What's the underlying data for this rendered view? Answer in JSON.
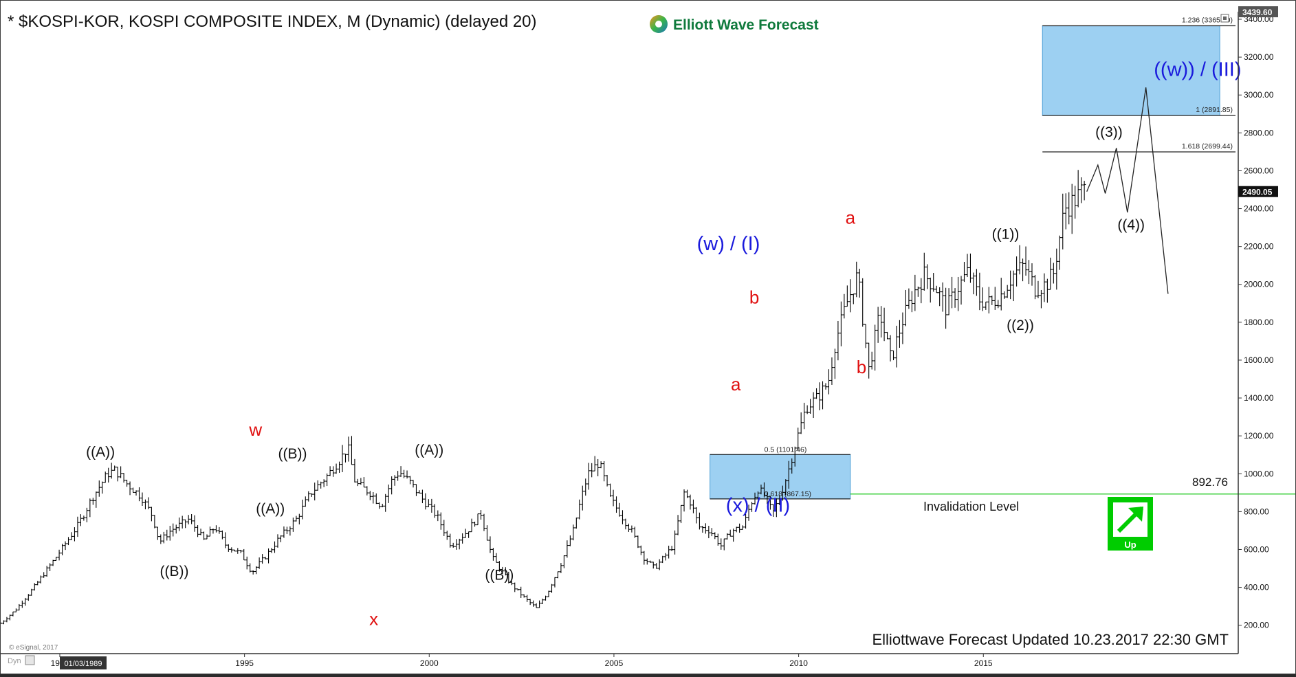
{
  "header": {
    "title": "* $KOSPI-KOR, KOSPI COMPOSITE INDEX, M (Dynamic) (delayed 20)",
    "brand": "Elliott Wave Forecast"
  },
  "footer": {
    "updated": "Elliottwave Forecast Updated 10.23.2017 22:30 GMT",
    "esignal": "© eSignal, 2017",
    "dyn": "Dyn",
    "date_cursor": "01/03/1989",
    "invalidation_label": "Invalidation Level",
    "invalidation_value": "892.76",
    "up_label": "Up"
  },
  "colors": {
    "price": "#000000",
    "blue_label": "#1a1adc",
    "red_label": "#e01010",
    "zone_fill": "#8cc8f0",
    "invalidation_line": "#00c000",
    "up_badge": "#00cc00"
  },
  "chart_data": {
    "type": "line",
    "x_unit": "year",
    "y_unit": "index points",
    "xlim": [
      1988.4,
      2021.9
    ],
    "ylim": [
      50,
      3440
    ],
    "y_ticks": [
      200,
      400,
      600,
      800,
      1000,
      1200,
      1400,
      1600,
      1800,
      2000,
      2200,
      2400,
      2600,
      2800,
      3000,
      3200,
      3400
    ],
    "x_ticks": [
      {
        "x": 1990,
        "label": "1990"
      },
      {
        "x": 1995,
        "label": "1995"
      },
      {
        "x": 2000,
        "label": "2000"
      },
      {
        "x": 2005,
        "label": "2005"
      },
      {
        "x": 2010,
        "label": "2010"
      },
      {
        "x": 2015,
        "label": "2015"
      }
    ],
    "price_tags": [
      {
        "value": 3439.6,
        "label": "3439.60"
      },
      {
        "value": 2490.05,
        "label": "2490.05"
      }
    ],
    "series": [
      {
        "style": "monthly-bars",
        "points": [
          [
            1988.4,
            210
          ],
          [
            1988.8,
            280
          ],
          [
            1989.3,
            400
          ],
          [
            1989.9,
            560
          ],
          [
            1990.5,
            730
          ],
          [
            1990.9,
            880
          ],
          [
            1991.3,
            1000
          ],
          [
            1991.5,
            1020
          ],
          [
            1991.8,
            950
          ],
          [
            1992.2,
            880
          ],
          [
            1992.5,
            780
          ],
          [
            1992.7,
            640
          ],
          [
            1993.0,
            700
          ],
          [
            1993.5,
            760
          ],
          [
            1993.9,
            650
          ],
          [
            1994.2,
            720
          ],
          [
            1994.5,
            620
          ],
          [
            1994.9,
            580
          ],
          [
            1995.2,
            480
          ],
          [
            1995.6,
            570
          ],
          [
            1995.9,
            650
          ],
          [
            1996.4,
            760
          ],
          [
            1996.8,
            900
          ],
          [
            1997.2,
            980
          ],
          [
            1997.6,
            1080
          ],
          [
            1997.8,
            1140
          ],
          [
            1998.0,
            950
          ],
          [
            1998.4,
            900
          ],
          [
            1998.7,
            830
          ],
          [
            1999.0,
            970
          ],
          [
            1999.2,
            1010
          ],
          [
            1999.5,
            950
          ],
          [
            1999.8,
            870
          ],
          [
            2000.2,
            780
          ],
          [
            2000.6,
            620
          ],
          [
            2001.0,
            690
          ],
          [
            2001.4,
            790
          ],
          [
            2001.7,
            560
          ],
          [
            2002.2,
            420
          ],
          [
            2002.6,
            340
          ],
          [
            2002.9,
            290
          ],
          [
            2003.2,
            370
          ],
          [
            2003.6,
            540
          ],
          [
            2003.9,
            700
          ],
          [
            2004.1,
            860
          ],
          [
            2004.3,
            1000
          ],
          [
            2004.6,
            1060
          ],
          [
            2004.9,
            870
          ],
          [
            2005.2,
            780
          ],
          [
            2005.5,
            690
          ],
          [
            2005.8,
            560
          ],
          [
            2006.1,
            500
          ],
          [
            2006.4,
            570
          ],
          [
            2006.6,
            620
          ],
          [
            2006.9,
            900
          ],
          [
            2007.1,
            840
          ],
          [
            2007.3,
            720
          ],
          [
            2007.6,
            700
          ],
          [
            2007.9,
            620
          ],
          [
            2008.2,
            700
          ],
          [
            2008.5,
            720
          ],
          [
            2008.7,
            840
          ],
          [
            2008.9,
            920
          ],
          [
            2009.1,
            880
          ],
          [
            2009.3,
            790
          ],
          [
            2009.5,
            880
          ],
          [
            2009.7,
            1000
          ],
          [
            2009.9,
            1150
          ],
          [
            2010.2,
            1350
          ],
          [
            2010.5,
            1400
          ],
          [
            2010.8,
            1480
          ],
          [
            2011.0,
            1700
          ],
          [
            2011.3,
            1900
          ],
          [
            2011.6,
            2050
          ],
          [
            2011.9,
            1550
          ],
          [
            2012.2,
            1850
          ],
          [
            2012.5,
            1600
          ],
          [
            2012.8,
            1800
          ],
          [
            2013.1,
            1950
          ],
          [
            2013.4,
            2050
          ],
          [
            2013.7,
            1990
          ],
          [
            2014.0,
            1870
          ],
          [
            2014.3,
            1980
          ],
          [
            2014.6,
            2070
          ],
          [
            2014.9,
            1920
          ],
          [
            2015.2,
            1900
          ],
          [
            2015.5,
            1950
          ],
          [
            2015.8,
            2050
          ],
          [
            2016.1,
            2100
          ],
          [
            2016.4,
            1980
          ],
          [
            2016.7,
            2000
          ],
          [
            2016.9,
            2060
          ],
          [
            2017.2,
            2400
          ],
          [
            2017.5,
            2450
          ],
          [
            2017.7,
            2500
          ],
          [
            2017.8,
            2490
          ]
        ]
      },
      {
        "style": "projection",
        "points": [
          [
            2017.8,
            2490
          ],
          [
            2018.1,
            2630
          ],
          [
            2018.3,
            2480
          ],
          [
            2018.6,
            2720
          ],
          [
            2018.9,
            2380
          ],
          [
            2019.4,
            3040
          ],
          [
            2020.0,
            1950
          ]
        ]
      }
    ],
    "fib_lines": [
      {
        "value": 3365.5,
        "label": "1.236 (3365.50)"
      },
      {
        "value": 2891.85,
        "label": "1 (2891.85)"
      },
      {
        "value": 2699.44,
        "label": "1.618 (2699.44)"
      },
      {
        "value": 1101.46,
        "label": "0.5 (1101.46)"
      },
      {
        "value": 867.15,
        "label": "0.618 (867.15)"
      }
    ],
    "zones": [
      {
        "x": [
          2016.6,
          2021.4
        ],
        "y": [
          2891.85,
          3365.5
        ]
      },
      {
        "x": [
          2007.6,
          2011.4
        ],
        "y": [
          867.15,
          1101.46
        ]
      }
    ],
    "invalidation": {
      "value": 892.76,
      "x": [
        2011.4,
        2029.7
      ]
    },
    "wave_labels": [
      {
        "text": "((A))",
        "x": 1991.1,
        "y": 1090,
        "color": "black"
      },
      {
        "text": "((B))",
        "x": 1993.1,
        "y": 460,
        "color": "black"
      },
      {
        "text": "w",
        "x": 1995.3,
        "y": 1200,
        "color": "red"
      },
      {
        "text": "((B))",
        "x": 1996.3,
        "y": 1080,
        "color": "black"
      },
      {
        "text": "((A))",
        "x": 1995.7,
        "y": 790,
        "color": "black"
      },
      {
        "text": "x",
        "x": 1998.5,
        "y": 200,
        "color": "red"
      },
      {
        "text": "((A))",
        "x": 2000.0,
        "y": 1100,
        "color": "black"
      },
      {
        "text": "((B))",
        "x": 2001.9,
        "y": 440,
        "color": "black"
      },
      {
        "text": "(w) / (I)",
        "x": 2008.1,
        "y": 2180,
        "color": "blue"
      },
      {
        "text": "b",
        "x": 2008.8,
        "y": 1900,
        "color": "red"
      },
      {
        "text": "a",
        "x": 2008.3,
        "y": 1440,
        "color": "red"
      },
      {
        "text": "(x) / (II)",
        "x": 2008.9,
        "y": 800,
        "color": "blue"
      },
      {
        "text": "a",
        "x": 2011.4,
        "y": 2320,
        "color": "red"
      },
      {
        "text": "b",
        "x": 2011.7,
        "y": 1530,
        "color": "red"
      },
      {
        "text": "((1))",
        "x": 2015.6,
        "y": 2240,
        "color": "black"
      },
      {
        "text": "((2))",
        "x": 2016.0,
        "y": 1760,
        "color": "black"
      },
      {
        "text": "((3))",
        "x": 2018.4,
        "y": 2780,
        "color": "black"
      },
      {
        "text": "((4))",
        "x": 2019.0,
        "y": 2290,
        "color": "black"
      },
      {
        "text": "((w)) / (III)",
        "x": 2020.8,
        "y": 3100,
        "color": "blue"
      }
    ]
  }
}
